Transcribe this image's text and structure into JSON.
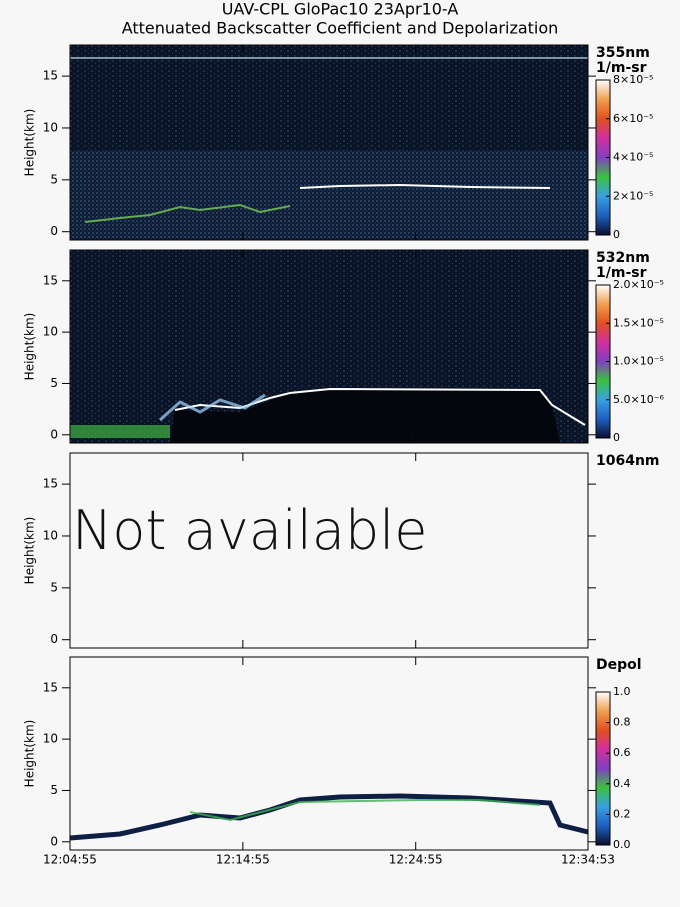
{
  "chart_data": [
    {
      "type": "curtain",
      "title": "UAV-CPL GloPac10 23Apr10-A",
      "subtitle": "Attenuated Backscatter Coefficient and Depolarization",
      "labels": [
        "355nm",
        "1/m-sr"
      ],
      "ylabel": "Height(km)",
      "ylim": [
        -0.8,
        18
      ],
      "yticks": [
        0,
        5,
        10,
        15
      ],
      "colorbar": {
        "lim": [
          0,
          8e-05
        ],
        "colors": [
          "#0a1030",
          "#1f5fbf",
          "#3aa0e0",
          "#3cc040",
          "#8040c0",
          "#d030a0",
          "#e05020",
          "#f0a050",
          "#ffffff"
        ],
        "ticks": [
          0,
          {
            "value": 2e-05,
            "label": "2×10⁻⁵"
          },
          {
            "value": 4e-05,
            "label": "4×10⁻⁵"
          },
          {
            "value": 6e-05,
            "label": "6×10⁻⁵"
          },
          {
            "value": 8e-05,
            "label": "8×10⁻⁵"
          }
        ]
      }
    },
    {
      "type": "curtain",
      "labels": [
        "532nm",
        "1/m-sr"
      ],
      "ylabel": "Height(km)",
      "ylim": [
        -0.8,
        18
      ],
      "yticks": [
        0,
        5,
        10,
        15
      ],
      "colorbar": {
        "lim": [
          0,
          2e-05
        ],
        "colors": [
          "#0a1030",
          "#1f5fbf",
          "#3aa0e0",
          "#3cc040",
          "#8040c0",
          "#d030a0",
          "#e05020",
          "#f0a050",
          "#ffffff"
        ],
        "ticks": [
          0,
          {
            "value": 5e-06,
            "label": "5.0×10⁻⁶"
          },
          {
            "value": 1e-05,
            "label": "1.0×10⁻⁵"
          },
          {
            "value": 1.5e-05,
            "label": "1.5×10⁻⁵"
          },
          {
            "value": 2e-05,
            "label": "2.0×10⁻⁵"
          }
        ]
      }
    },
    {
      "type": "curtain",
      "labels": [
        "1064nm"
      ],
      "annotation": "Not available",
      "ylabel": "Height(km)",
      "ylim": [
        -0.8,
        18
      ],
      "yticks": [
        0,
        5,
        10,
        15
      ]
    },
    {
      "type": "curtain",
      "labels": [
        "Depol"
      ],
      "ylabel": "Height(km)",
      "ylim": [
        -0.8,
        18
      ],
      "yticks": [
        0,
        5,
        10,
        15
      ],
      "xlim": [
        43495,
        45293
      ],
      "xticks": [
        {
          "value": 43495,
          "label": "12:04:55"
        },
        {
          "value": 44095,
          "label": "12:14:55"
        },
        {
          "value": 44695,
          "label": "12:24:55"
        },
        {
          "value": 45293,
          "label": "12:34:53"
        }
      ],
      "colorbar": {
        "lim": [
          0,
          1
        ],
        "colors": [
          "#0a1030",
          "#1f5fbf",
          "#3aa0e0",
          "#3cc040",
          "#8040c0",
          "#d030a0",
          "#e05020",
          "#f0a050",
          "#ffffff"
        ],
        "ticks": [
          {
            "value": 0,
            "label": "0.0"
          },
          0.2,
          0.4,
          0.6,
          0.8,
          {
            "value": 1,
            "label": "1.0"
          }
        ]
      }
    }
  ]
}
